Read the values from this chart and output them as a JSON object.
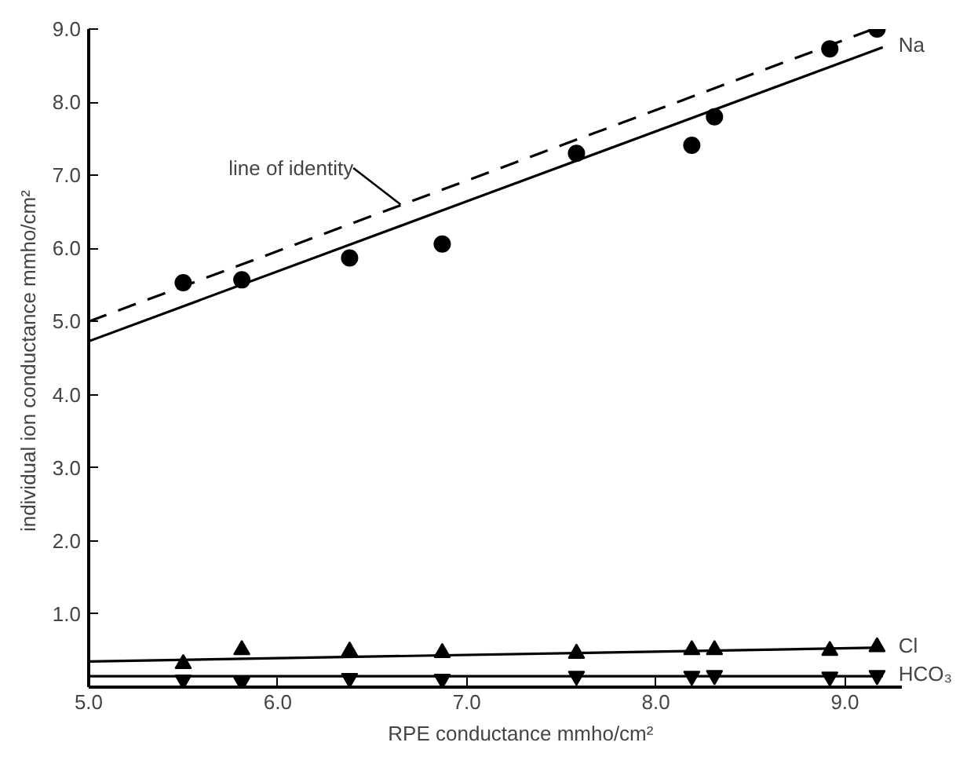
{
  "chart_data": {
    "type": "scatter",
    "xlabel": "RPE  conductance mmho/cm²",
    "ylabel": "individual ion conductance  mmho/cm²",
    "xlim": [
      5.0,
      9.3
    ],
    "ylim": [
      0,
      9.0
    ],
    "xticks": [
      {
        "value": 5,
        "label": "5.0"
      },
      {
        "value": 6,
        "label": "6.0"
      },
      {
        "value": 7,
        "label": "7.0"
      },
      {
        "value": 8,
        "label": "8.0"
      },
      {
        "value": 9,
        "label": "9.0"
      }
    ],
    "yticks": [
      {
        "value": 1,
        "label": "1.0"
      },
      {
        "value": 2,
        "label": "2.0"
      },
      {
        "value": 3,
        "label": "3.0"
      },
      {
        "value": 4,
        "label": "4.0"
      },
      {
        "value": 5,
        "label": "5.0"
      },
      {
        "value": 6,
        "label": "6.0"
      },
      {
        "value": 7,
        "label": "7.0"
      },
      {
        "value": 8,
        "label": "8.0"
      },
      {
        "value": 9,
        "label": "9.0"
      }
    ],
    "grid": false,
    "legend": false,
    "series": [
      {
        "type": "scatter",
        "marker": "circle",
        "color": "#000000",
        "x": [
          5.5,
          5.81,
          6.38,
          6.87,
          7.58,
          8.19,
          8.31,
          8.92,
          9.17
        ],
        "values": [
          5.53,
          5.57,
          5.87,
          6.06,
          7.3,
          7.41,
          7.8,
          8.73,
          9.0
        ]
      },
      {
        "type": "line",
        "name": "Na",
        "color": "#000000",
        "line_style": "solid",
        "x": [
          5.0,
          9.2
        ],
        "values": [
          4.73,
          8.75
        ]
      },
      {
        "type": "line",
        "color": "#000000",
        "line_style": "dashed",
        "x": [
          5.0,
          9.15
        ],
        "values": [
          5.0,
          9.0
        ]
      },
      {
        "type": "scatter",
        "marker": "triangle",
        "color": "#000000",
        "x": [
          5.5,
          5.81,
          6.38,
          6.87,
          7.58,
          8.19,
          8.31,
          8.92,
          9.17
        ],
        "values": [
          0.32,
          0.51,
          0.49,
          0.47,
          0.46,
          0.51,
          0.51,
          0.5,
          0.55
        ]
      },
      {
        "type": "line",
        "name": "Cl",
        "color": "#000000",
        "line_style": "solid",
        "x": [
          5.0,
          9.2
        ],
        "values": [
          0.35,
          0.54
        ]
      },
      {
        "type": "scatter",
        "marker": "triangle_down",
        "color": "#000000",
        "x": [
          5.5,
          5.81,
          6.38,
          6.87,
          7.58,
          8.19,
          8.31,
          8.92,
          9.17
        ],
        "values": [
          0.1,
          0.07,
          0.12,
          0.11,
          0.15,
          0.15,
          0.16,
          0.14,
          0.16
        ]
      },
      {
        "type": "line",
        "name": "HCO₃",
        "color": "#000000",
        "line_style": "solid",
        "x": [
          5.0,
          9.2
        ],
        "values": [
          0.15,
          0.15
        ]
      }
    ],
    "annotations": [
      {
        "text": "line of identity",
        "x": 6.65,
        "y": 6.6
      }
    ]
  }
}
